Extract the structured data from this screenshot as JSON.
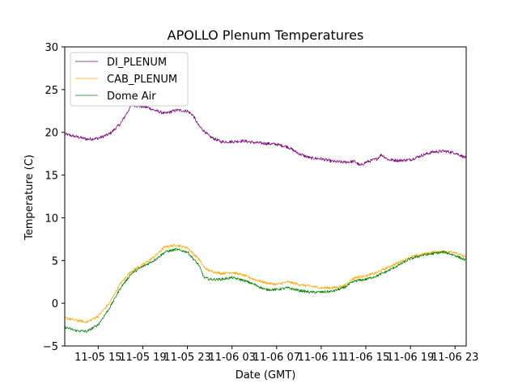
{
  "chart_data": {
    "type": "line",
    "title": "APOLLO Plenum Temperatures",
    "xlabel": "Date (GMT)",
    "ylabel": "Temperature (C)",
    "x_unit": "hours since 11-05 12:00 GMT",
    "xlim": [
      0,
      36
    ],
    "ylim": [
      -5,
      30
    ],
    "grid": false,
    "legend_position": "top-left",
    "x_ticks": [
      {
        "value": 3,
        "label": "11-05 15"
      },
      {
        "value": 7,
        "label": "11-05 19"
      },
      {
        "value": 11,
        "label": "11-05 23"
      },
      {
        "value": 15,
        "label": "11-06 03"
      },
      {
        "value": 19,
        "label": "11-06 07"
      },
      {
        "value": 23,
        "label": "11-06 11"
      },
      {
        "value": 27,
        "label": "11-06 15"
      },
      {
        "value": 31,
        "label": "11-06 19"
      },
      {
        "value": 35,
        "label": "11-06 23"
      }
    ],
    "y_ticks": [
      {
        "value": -5,
        "label": "−5"
      },
      {
        "value": 0,
        "label": "0"
      },
      {
        "value": 5,
        "label": "5"
      },
      {
        "value": 10,
        "label": "10"
      },
      {
        "value": 15,
        "label": "15"
      },
      {
        "value": 20,
        "label": "20"
      },
      {
        "value": 25,
        "label": "25"
      },
      {
        "value": 30,
        "label": "30"
      }
    ],
    "series": [
      {
        "name": "DI_PLENUM",
        "color": "#800080",
        "noise": 0.18,
        "x": [
          0,
          1,
          2,
          3,
          4,
          5,
          6,
          7,
          7.5,
          8,
          9,
          10,
          11,
          11.5,
          12,
          13,
          14,
          15,
          16,
          17,
          18,
          19,
          20,
          21,
          22,
          23,
          24,
          25,
          26,
          26.5,
          27,
          28,
          28.4,
          29,
          30,
          31,
          32,
          33,
          34,
          35,
          36
        ],
        "y": [
          19.8,
          19.5,
          19.2,
          19.3,
          19.8,
          21.0,
          23.2,
          23.0,
          22.9,
          22.6,
          22.2,
          22.6,
          22.5,
          22.0,
          20.8,
          19.5,
          18.9,
          18.9,
          19.0,
          18.8,
          18.7,
          18.6,
          18.3,
          17.5,
          17.0,
          16.9,
          16.6,
          16.5,
          16.6,
          16.1,
          16.5,
          16.9,
          17.4,
          16.8,
          16.7,
          16.8,
          17.3,
          17.7,
          17.8,
          17.6,
          17.0
        ]
      },
      {
        "name": "CAB_PLENUM",
        "color": "#FFA500",
        "noise": 0.15,
        "x": [
          0,
          1,
          2,
          3,
          4,
          5,
          6,
          7,
          8,
          9,
          10,
          11,
          12,
          12.5,
          13,
          14,
          15,
          16,
          17,
          18,
          19,
          20,
          21,
          22,
          23,
          24,
          25,
          26,
          27,
          28,
          29,
          30,
          31,
          32,
          33,
          34,
          35,
          36
        ],
        "y": [
          -1.7,
          -2.0,
          -2.2,
          -1.5,
          0.0,
          2.3,
          3.8,
          4.5,
          5.4,
          6.6,
          6.8,
          6.5,
          5.2,
          4.2,
          3.8,
          3.5,
          3.6,
          3.3,
          2.8,
          2.4,
          2.2,
          2.5,
          2.2,
          2.0,
          1.8,
          1.8,
          2.0,
          3.0,
          3.2,
          3.6,
          4.2,
          4.8,
          5.4,
          5.7,
          6.0,
          6.0,
          6.0,
          5.3
        ]
      },
      {
        "name": "Dome Air",
        "color": "#008000",
        "noise": 0.15,
        "x": [
          0,
          1,
          2,
          3,
          4,
          5,
          6,
          7,
          8,
          9,
          10,
          11,
          12,
          12.5,
          13,
          14,
          15,
          16,
          17,
          18,
          19,
          20,
          21,
          22,
          23,
          24,
          25,
          26,
          27,
          28,
          29,
          30,
          31,
          32,
          33,
          34,
          35,
          36
        ],
        "y": [
          -2.8,
          -3.2,
          -3.3,
          -2.5,
          -0.6,
          1.8,
          3.5,
          4.3,
          5.0,
          6.0,
          6.3,
          6.0,
          4.5,
          3.0,
          2.8,
          2.8,
          3.0,
          2.7,
          2.2,
          1.6,
          1.6,
          1.8,
          1.5,
          1.3,
          1.3,
          1.4,
          1.8,
          2.6,
          2.8,
          3.2,
          3.8,
          4.5,
          5.2,
          5.6,
          5.8,
          6.0,
          5.6,
          5.0
        ]
      }
    ]
  }
}
